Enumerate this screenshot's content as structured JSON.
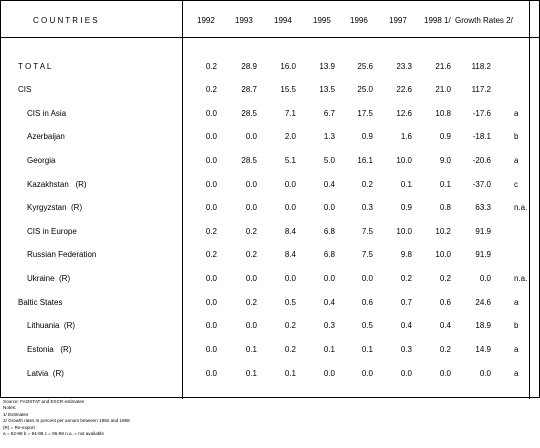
{
  "header": {
    "countries": "C O U N T R I E S",
    "years": [
      "1992",
      "1993",
      "1994",
      "1995",
      "1996",
      "1997",
      "1998 1/"
    ],
    "growth": "Growth Rates  2/"
  },
  "rows": [
    {
      "name": "T O T A L",
      "indent": 0,
      "values": [
        "0.2",
        "28.9",
        "16.0",
        "13.9",
        "25.6",
        "23.3",
        "21.6",
        "118.2"
      ],
      "note": ""
    },
    {
      "name": "CIS",
      "indent": 0,
      "values": [
        "0.2",
        "28.7",
        "15.5",
        "13.5",
        "25.0",
        "22.6",
        "21.0",
        "117.2"
      ],
      "note": ""
    },
    {
      "name": "CIS in Asia",
      "indent": 1,
      "values": [
        "0.0",
        "28.5",
        "7.1",
        "6.7",
        "17.5",
        "12.6",
        "10.8",
        "-17.6"
      ],
      "note": "a"
    },
    {
      "name": "Azerbaijan",
      "indent": 1,
      "values": [
        "0.0",
        "0.0",
        "2.0",
        "1.3",
        "0.9",
        "1.6",
        "0.9",
        "-18.1"
      ],
      "note": "b"
    },
    {
      "name": "Georgia",
      "indent": 1,
      "values": [
        "0.0",
        "28.5",
        "5.1",
        "5.0",
        "16.1",
        "10.0",
        "9.0",
        "-20.6"
      ],
      "note": "a"
    },
    {
      "name": "Kazakhstan   (R)",
      "indent": 1,
      "values": [
        "0.0",
        "0.0",
        "0.0",
        "0.4",
        "0.2",
        "0.1",
        "0.1",
        "-37.0"
      ],
      "note": "c"
    },
    {
      "name": "Kyrgyzstan  (R)",
      "indent": 1,
      "values": [
        "0.0",
        "0.0",
        "0.0",
        "0.0",
        "0.3",
        "0.9",
        "0.8",
        "63.3"
      ],
      "note": "n.a."
    },
    {
      "name": "CIS in Europe",
      "indent": 1,
      "values": [
        "0.2",
        "0.2",
        "8.4",
        "6.8",
        "7.5",
        "10.0",
        "10.2",
        "91.9"
      ],
      "note": ""
    },
    {
      "name": "Russian Federation",
      "indent": 1,
      "values": [
        "0.2",
        "0.2",
        "8.4",
        "6.8",
        "7.5",
        "9.8",
        "10.0",
        "91.9"
      ],
      "note": ""
    },
    {
      "name": "Ukraine  (R)",
      "indent": 1,
      "values": [
        "0.0",
        "0.0",
        "0.0",
        "0.0",
        "0.0",
        "0.2",
        "0.2",
        "0.0"
      ],
      "note": "n.a."
    },
    {
      "name": "Baltic States",
      "indent": 0,
      "values": [
        "0.0",
        "0.2",
        "0.5",
        "0.4",
        "0.6",
        "0.7",
        "0.6",
        "24.6"
      ],
      "note": "a"
    },
    {
      "name": "Lithuania  (R)",
      "indent": 1,
      "values": [
        "0.0",
        "0.0",
        "0.2",
        "0.3",
        "0.5",
        "0.4",
        "0.4",
        "18.9"
      ],
      "note": "b"
    },
    {
      "name": "Estonia   (R)",
      "indent": 1,
      "values": [
        "0.0",
        "0.1",
        "0.2",
        "0.1",
        "0.1",
        "0.3",
        "0.2",
        "14.9"
      ],
      "note": "a"
    },
    {
      "name": "Latvia  (R)",
      "indent": 1,
      "values": [
        "0.0",
        "0.1",
        "0.1",
        "0.0",
        "0.0",
        "0.0",
        "0.0",
        "0.0"
      ],
      "note": "a"
    }
  ],
  "footer": {
    "source": "Source: FAOSTAT and ESCR estimates",
    "notes": "Notes:",
    "n1": "1/ Estimates",
    "n2": "2/ Growth rates in percent per annum between 1992 and 1998",
    "n3": "(R) = Re-export",
    "n4": "a = 92-98          b = 94-98          c = 95-98          n.a. = not available"
  }
}
